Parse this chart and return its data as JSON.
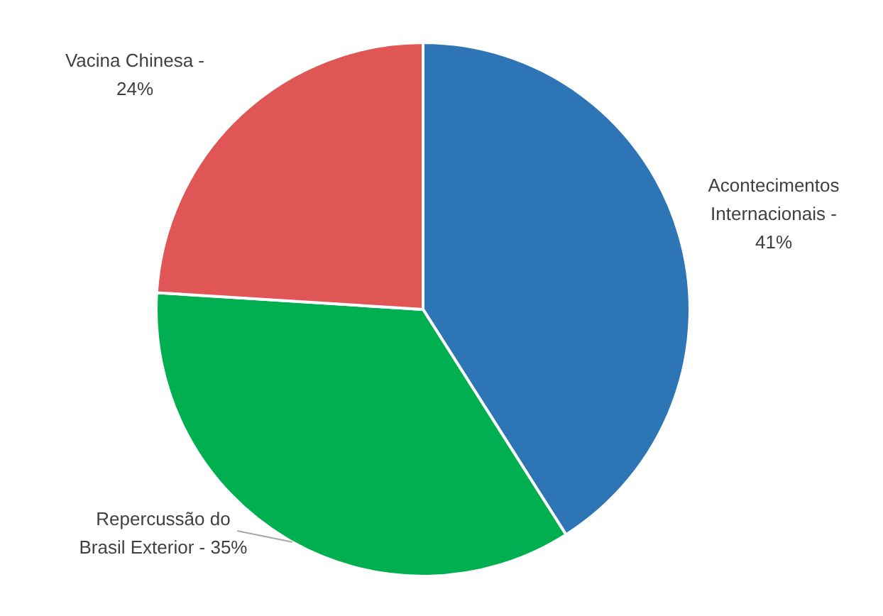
{
  "chart_data": {
    "type": "pie",
    "categories": [
      "Acontecimentos Internacionais -",
      "Repercussão do Brasil Exterior -",
      "Vacina Chinesa -"
    ],
    "values": [
      41,
      35,
      24
    ],
    "value_labels": [
      "41%",
      "35%",
      "24%"
    ],
    "colors": [
      "#2e75b6",
      "#00b050",
      "#e05555"
    ]
  }
}
